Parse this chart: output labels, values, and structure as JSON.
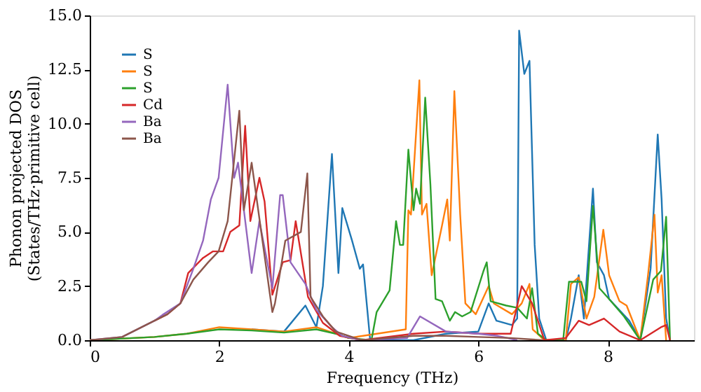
{
  "chart_data": {
    "type": "line",
    "xlabel": "Frequency (THz)",
    "ylabel": "Phonon projected DOS\n(States/THz·primitive cell)",
    "xlim": [
      0,
      9.33
    ],
    "ylim": [
      0,
      15
    ],
    "xticks": [
      0,
      2,
      4,
      6,
      8
    ],
    "yticks": [
      {
        "value": 0,
        "label": "0.0"
      },
      2.5,
      {
        "value": 5,
        "label": "5.0"
      },
      7.5,
      {
        "value": 10,
        "label": "10.0"
      },
      12.5,
      {
        "value": 15,
        "label": "15.0"
      }
    ],
    "grid": false,
    "legend": "top left",
    "line_style": "solid",
    "marker": "none",
    "series": [
      {
        "name": "S",
        "color": "#1f77b4",
        "x": [
          2.5,
          3.0,
          3.33,
          3.5,
          3.6,
          3.74,
          3.84,
          3.9,
          4.05,
          4.17,
          4.22,
          4.33,
          5.0,
          5.5,
          6.0,
          6.16,
          6.28,
          6.52,
          6.6,
          6.63,
          6.71,
          6.79,
          6.87,
          6.94,
          7.05,
          7.35,
          7.43,
          7.55,
          7.63,
          7.77,
          7.83,
          7.94,
          8.02,
          8.33,
          8.5,
          8.66,
          8.77,
          8.83,
          8.9,
          8.96
        ],
        "values": [
          0.5,
          0.4,
          1.6,
          0.6,
          2.5,
          8.6,
          3.1,
          6.1,
          4.6,
          3.3,
          3.5,
          0,
          0,
          0.3,
          0.4,
          1.7,
          0.9,
          0.7,
          1.0,
          14.3,
          12.3,
          12.9,
          4.4,
          1.0,
          0,
          0,
          1.0,
          3.0,
          1.0,
          7.0,
          3.6,
          3.0,
          1.9,
          0.9,
          0,
          3.3,
          9.5,
          6.5,
          1.0,
          0
        ]
      },
      {
        "name": "S",
        "color": "#ff7f0e",
        "x": [
          0,
          1.0,
          1.5,
          2.0,
          2.5,
          3.0,
          3.5,
          3.8,
          4.0,
          4.88,
          4.92,
          4.96,
          5.09,
          5.13,
          5.2,
          5.28,
          5.44,
          5.52,
          5.56,
          5.63,
          5.72,
          5.8,
          5.96,
          6.16,
          6.24,
          6.52,
          6.67,
          6.79,
          6.84,
          7.02,
          7.35,
          7.43,
          7.55,
          7.67,
          7.79,
          7.93,
          8.02,
          8.18,
          8.29,
          8.5,
          8.62,
          8.72,
          8.77,
          8.83,
          8.9
        ],
        "values": [
          0,
          0.15,
          0.3,
          0.6,
          0.5,
          0.4,
          0.6,
          0.3,
          0.1,
          0.5,
          6.0,
          5.8,
          12.0,
          5.8,
          6.3,
          3.0,
          5.3,
          6.5,
          4.6,
          11.5,
          5.8,
          1.7,
          1.2,
          2.5,
          1.7,
          1.2,
          1.7,
          2.6,
          0.5,
          0,
          0,
          2.6,
          2.9,
          1.0,
          2.0,
          5.1,
          3.0,
          1.8,
          1.6,
          0,
          3.0,
          5.8,
          2.2,
          3.0,
          0
        ]
      },
      {
        "name": "S",
        "color": "#2ca02c",
        "x": [
          0,
          1.0,
          1.5,
          2.0,
          2.5,
          3.0,
          3.5,
          3.8,
          4.0,
          4.35,
          4.43,
          4.63,
          4.73,
          4.79,
          4.84,
          4.92,
          5.0,
          5.04,
          5.1,
          5.18,
          5.26,
          5.34,
          5.44,
          5.56,
          5.64,
          5.75,
          5.88,
          6.08,
          6.13,
          6.19,
          6.43,
          6.6,
          6.75,
          6.83,
          6.92,
          7.05,
          7.31,
          7.4,
          7.59,
          7.67,
          7.77,
          7.87,
          8.02,
          8.25,
          8.5,
          8.7,
          8.82,
          8.9,
          8.96
        ],
        "values": [
          0,
          0.15,
          0.3,
          0.5,
          0.45,
          0.35,
          0.5,
          0.3,
          0.1,
          0,
          1.3,
          2.3,
          5.5,
          4.4,
          4.4,
          8.8,
          6.0,
          7.0,
          6.3,
          11.2,
          7.2,
          1.9,
          1.8,
          0.9,
          1.3,
          1.1,
          1.3,
          3.2,
          3.6,
          1.8,
          1.6,
          1.5,
          1.0,
          2.4,
          0.3,
          0,
          0,
          2.7,
          2.7,
          1.8,
          6.2,
          2.4,
          1.9,
          1.1,
          0,
          2.8,
          3.2,
          5.7,
          0
        ]
      },
      {
        "name": "Cd",
        "color": "#d62728",
        "x": [
          1.0,
          1.2,
          1.4,
          1.52,
          1.75,
          1.9,
          2.06,
          2.17,
          2.31,
          2.4,
          2.48,
          2.62,
          2.7,
          2.82,
          2.98,
          3.1,
          3.18,
          3.37,
          3.6,
          3.86,
          4.2,
          5.0,
          5.5,
          6.0,
          6.5,
          6.67,
          6.83,
          7.02,
          7.35,
          7.55,
          7.71,
          7.94,
          8.18,
          8.5,
          8.82,
          8.9,
          8.96
        ],
        "values": [
          0.9,
          1.2,
          1.7,
          3.1,
          3.8,
          4.1,
          4.1,
          5.0,
          5.3,
          9.9,
          5.5,
          7.5,
          6.4,
          2.1,
          3.6,
          3.7,
          5.5,
          2.0,
          0.8,
          0.2,
          0,
          0.3,
          0.4,
          0.3,
          0.3,
          2.5,
          1.7,
          0,
          0.1,
          0.9,
          0.7,
          1.0,
          0.4,
          0,
          0.6,
          0.7,
          0
        ]
      },
      {
        "name": "Ba",
        "color": "#9467bd",
        "x": [
          0,
          0.5,
          1.0,
          1.12,
          1.4,
          1.6,
          1.75,
          1.87,
          1.99,
          2.13,
          2.23,
          2.29,
          2.5,
          2.62,
          2.82,
          2.94,
          2.98,
          3.1,
          3.33,
          3.5,
          3.74,
          3.9,
          4.2,
          4.9,
          5.1,
          5.5,
          6.0,
          6.3,
          6.6
        ],
        "values": [
          0,
          0.15,
          0.9,
          1.16,
          1.7,
          3.3,
          4.6,
          6.5,
          7.5,
          11.8,
          7.5,
          8.2,
          3.1,
          5.5,
          2.4,
          6.7,
          6.7,
          3.6,
          2.6,
          1.4,
          0.6,
          0.2,
          0,
          0.1,
          1.1,
          0.4,
          0.3,
          0.2,
          0
        ]
      },
      {
        "name": "Ba",
        "color": "#8c564b",
        "x": [
          0,
          0.5,
          1.0,
          1.2,
          1.4,
          1.6,
          1.83,
          1.99,
          2.13,
          2.31,
          2.38,
          2.5,
          2.82,
          2.86,
          3.02,
          3.26,
          3.36,
          3.41,
          3.6,
          3.8,
          4.2,
          5.0,
          5.5,
          6.0,
          6.5,
          7.0
        ],
        "values": [
          0,
          0.15,
          0.9,
          1.2,
          1.7,
          2.8,
          3.6,
          4.1,
          5.5,
          10.6,
          6.0,
          8.2,
          1.3,
          1.7,
          4.6,
          5.0,
          7.7,
          2.0,
          1.1,
          0.4,
          0,
          0.2,
          0.2,
          0.15,
          0.1,
          0
        ]
      }
    ]
  }
}
